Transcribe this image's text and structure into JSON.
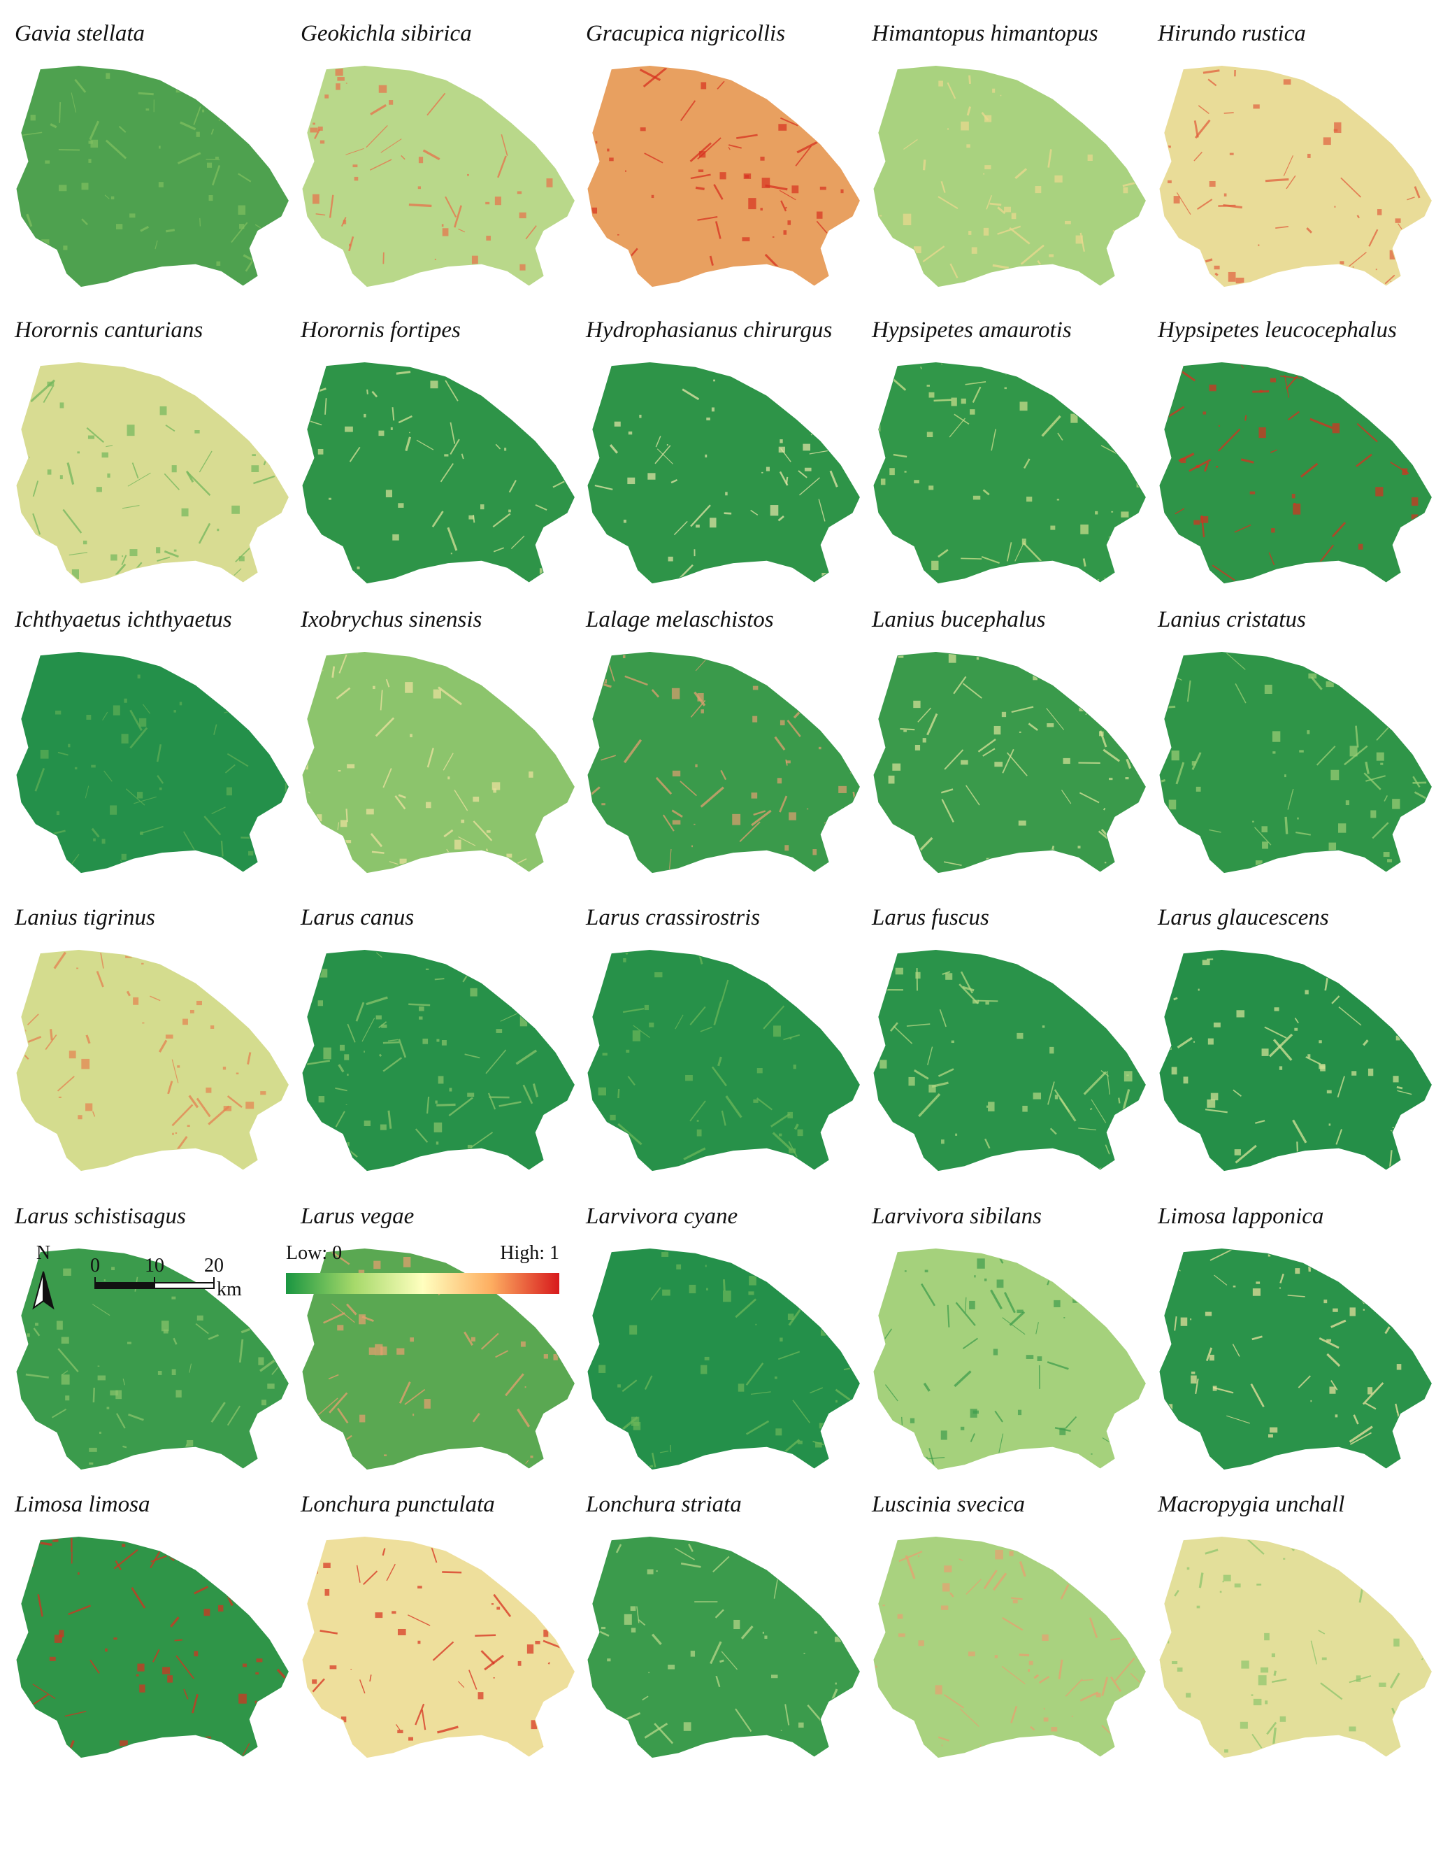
{
  "panels": [
    {
      "name": "Gavia stellata",
      "color": "#4ea14f",
      "accent": "#7fbf5f"
    },
    {
      "name": "Geokichla sibirica",
      "color": "#b9d88a",
      "accent": "#e8704a"
    },
    {
      "name": "Gracupica nigricollis",
      "color": "#e8a060",
      "accent": "#d7301f"
    },
    {
      "name": "Himantopus himantopus",
      "color": "#a9d27f",
      "accent": "#ecd98f"
    },
    {
      "name": "Hirundo rustica",
      "color": "#e9dc98",
      "accent": "#e0603e"
    },
    {
      "name": "Horornis canturians",
      "color": "#d8dc92",
      "accent": "#72b65c"
    },
    {
      "name": "Horornis fortipes",
      "color": "#2e9448",
      "accent": "#d9e39a"
    },
    {
      "name": "Hydrophasianus chirurgus",
      "color": "#2e9448",
      "accent": "#e6e6a8"
    },
    {
      "name": "Hypsipetes amaurotis",
      "color": "#319749",
      "accent": "#cfe08e"
    },
    {
      "name": "Hypsipetes leucocephalus",
      "color": "#2e9448",
      "accent": "#d7301f"
    },
    {
      "name": "Ichthyaetus ichthyaetus",
      "color": "#24904a",
      "accent": "#5fae56"
    },
    {
      "name": "Ixobrychus sinensis",
      "color": "#8cc46c",
      "accent": "#eee2a0"
    },
    {
      "name": "Lalage melaschistos",
      "color": "#3a9a4b",
      "accent": "#e1a070"
    },
    {
      "name": "Lanius bucephalus",
      "color": "#3a9a4b",
      "accent": "#d9e39a"
    },
    {
      "name": "Lanius cristatus",
      "color": "#2f9548",
      "accent": "#9ccf76"
    },
    {
      "name": "Lanius tigrinus",
      "color": "#d4dc8e",
      "accent": "#e58050"
    },
    {
      "name": "Larus canus",
      "color": "#279149",
      "accent": "#8cc46c"
    },
    {
      "name": "Larus crassirostris",
      "color": "#279149",
      "accent": "#6cb75a"
    },
    {
      "name": "Larus fuscus",
      "color": "#2a934a",
      "accent": "#b5d884"
    },
    {
      "name": "Larus glaucescens",
      "color": "#258f48",
      "accent": "#d7e49a"
    },
    {
      "name": "Larus schistisagus",
      "color": "#3b9b4c",
      "accent": "#8cc46c"
    },
    {
      "name": "Larus vegae",
      "color": "#5aa852",
      "accent": "#e8a070"
    },
    {
      "name": "Larvivora cyane",
      "color": "#24904a",
      "accent": "#6cb75a"
    },
    {
      "name": "Larvivora sibilans",
      "color": "#a5d17c",
      "accent": "#3f9d4d"
    },
    {
      "name": "Limosa lapponica",
      "color": "#2a934a",
      "accent": "#eee2a0"
    },
    {
      "name": "Limosa limosa",
      "color": "#2f9548",
      "accent": "#d7301f"
    },
    {
      "name": "Lonchura punctulata",
      "color": "#eedf9c",
      "accent": "#d7301f"
    },
    {
      "name": "Lonchura striata",
      "color": "#3b9b4c",
      "accent": "#b9d88a"
    },
    {
      "name": "Luscinia svecica",
      "color": "#a9d27f",
      "accent": "#e8a070"
    },
    {
      "name": "Macropygia unchall",
      "color": "#e3df9a",
      "accent": "#8cc46c"
    }
  ],
  "legend": {
    "north": "N",
    "scale_ticks": [
      0,
      10,
      20
    ],
    "scale_unit": "km",
    "low_label": "Low: 0",
    "high_label": "High: 1",
    "colorbar_colors": [
      "#1a9641",
      "#a6d96a",
      "#ffffbf",
      "#fdae61",
      "#d7191c"
    ]
  }
}
